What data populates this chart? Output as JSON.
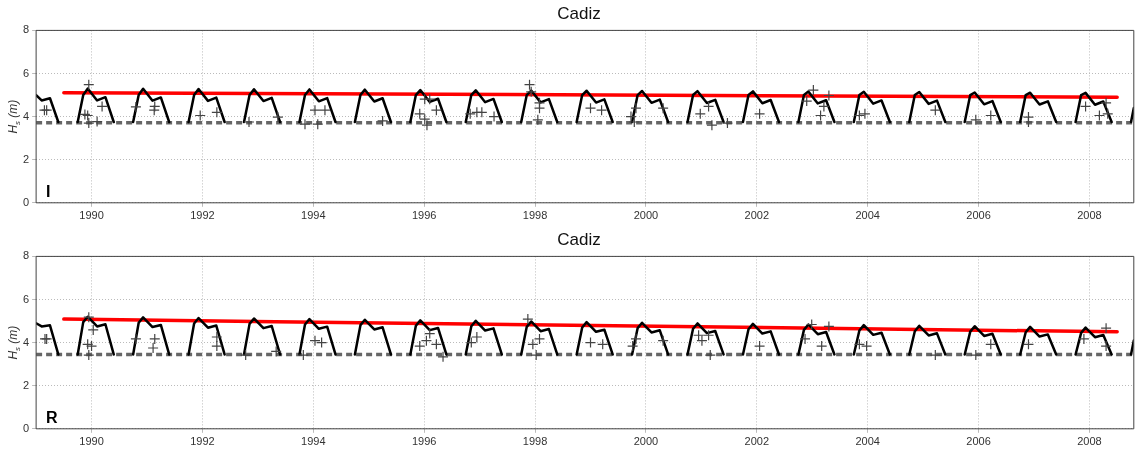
{
  "chart_data": [
    {
      "type": "line",
      "title": "Cadiz",
      "ylabel": "H$_{s}$ (m)",
      "xlim": [
        1989,
        2008.8
      ],
      "xticks": [
        1990,
        1992,
        1994,
        1996,
        1998,
        2000,
        2002,
        2004,
        2006,
        2008
      ],
      "ylim": [
        0,
        8
      ],
      "yticks": [
        0,
        2,
        4,
        6,
        8
      ],
      "grid": true,
      "annotations": [
        "I"
      ],
      "ref_lines": [
        {
          "axis": "y",
          "value": 3.71,
          "color": "#666666",
          "line_style": "dashed"
        }
      ],
      "series": [
        {
          "type": "line",
          "color": "#000000",
          "x": [
            1989,
            1989.1,
            1989.25,
            1989.4,
            1989.5,
            1989.75,
            1989.85,
            1989.93,
            1990.1,
            1990.25,
            1990.4,
            1990.5,
            1990.75,
            1990.85,
            1990.93,
            1991.1,
            1991.25,
            1991.4,
            1991.5,
            1991.75,
            1991.85,
            1991.93,
            1992.1,
            1992.25,
            1992.4,
            1992.5,
            1992.75,
            1992.85,
            1992.93,
            1993.1,
            1993.25,
            1993.4,
            1993.5,
            1993.75,
            1993.85,
            1993.93,
            1994.1,
            1994.25,
            1994.4,
            1994.5,
            1994.75,
            1994.85,
            1994.93,
            1995.1,
            1995.25,
            1995.4,
            1995.5,
            1995.75,
            1995.85,
            1995.93,
            1996.1,
            1996.25,
            1996.4,
            1996.5,
            1996.75,
            1996.85,
            1996.93,
            1997.1,
            1997.25,
            1997.4,
            1997.5,
            1997.75,
            1997.85,
            1997.93,
            1998.1,
            1998.25,
            1998.4,
            1998.5,
            1998.75,
            1998.85,
            1998.93,
            1999.1,
            1999.25,
            1999.4,
            1999.5,
            1999.75,
            1999.85,
            1999.93,
            2000.1,
            2000.25,
            2000.4,
            2000.5,
            2000.75,
            2000.85,
            2000.93,
            2001.1,
            2001.25,
            2001.4,
            2001.5,
            2001.75,
            2001.85,
            2001.93,
            2002.1,
            2002.25,
            2002.4,
            2002.5,
            2002.75,
            2002.85,
            2002.93,
            2003.1,
            2003.25,
            2003.4,
            2003.5,
            2003.75,
            2003.85,
            2003.93,
            2004.1,
            2004.25,
            2004.4,
            2004.5,
            2004.75,
            2004.85,
            2004.93,
            2005.1,
            2005.25,
            2005.4,
            2005.5,
            2005.75,
            2005.85,
            2005.93,
            2006.1,
            2006.25,
            2006.4,
            2006.5,
            2006.75,
            2006.85,
            2006.93,
            2007.1,
            2007.25,
            2007.4,
            2007.5,
            2007.75,
            2007.85,
            2007.93,
            2008.1,
            2008.25,
            2008.4,
            2008.5,
            2008.75,
            2008.8
          ],
          "values": [
            5.0,
            4.75,
            4.85,
            3.75,
            null,
            3.75,
            5.0,
            5.3,
            4.75,
            4.9,
            3.75,
            null,
            3.75,
            5.0,
            5.29,
            4.74,
            4.89,
            3.75,
            null,
            3.75,
            5.0,
            5.28,
            4.73,
            4.88,
            3.75,
            null,
            3.75,
            5.0,
            5.27,
            4.72,
            4.87,
            3.75,
            null,
            3.75,
            5.0,
            5.26,
            4.71,
            4.86,
            3.75,
            null,
            3.75,
            5.0,
            5.25,
            4.7,
            4.85,
            3.75,
            null,
            3.75,
            5.0,
            5.23,
            4.68,
            4.83,
            3.75,
            null,
            3.75,
            5.0,
            5.22,
            4.67,
            4.82,
            3.75,
            null,
            3.75,
            5.0,
            5.21,
            4.66,
            4.81,
            3.75,
            null,
            3.75,
            5.0,
            5.2,
            4.65,
            4.8,
            3.75,
            null,
            3.75,
            5.0,
            5.19,
            4.64,
            4.79,
            3.75,
            null,
            3.75,
            5.0,
            5.18,
            4.63,
            4.78,
            3.75,
            null,
            3.75,
            5.0,
            5.17,
            4.62,
            4.77,
            3.75,
            null,
            3.75,
            5.0,
            5.16,
            4.61,
            4.76,
            3.75,
            null,
            3.75,
            5.0,
            5.15,
            4.6,
            4.75,
            3.75,
            null,
            3.75,
            5.0,
            5.14,
            4.59,
            4.74,
            3.75,
            null,
            3.75,
            5.0,
            5.12,
            4.57,
            4.72,
            3.75,
            null,
            3.75,
            5.0,
            5.11,
            4.56,
            4.71,
            3.75,
            null,
            3.75,
            5.0,
            5.1,
            4.55,
            4.7,
            3.75,
            null,
            3.75,
            4.4
          ]
        },
        {
          "type": "scatter",
          "marker": "cross",
          "color": "#444444",
          "x": [
            1989.15,
            1989.19,
            1989.95,
            1989.93,
            1989.95,
            1990.19,
            1990.1,
            1989.88,
            1990.8,
            1991.13,
            1991.14,
            1991.96,
            1992.26,
            1992.84,
            1993.36,
            1993.85,
            1994.03,
            1994.21,
            1994.08,
            1995.25,
            1995.92,
            1996.01,
            1996.1,
            1996.22,
            1996.01,
            1996.05,
            1996.83,
            1996.95,
            1997.04,
            1997.26,
            1997.9,
            1997.93,
            1998.08,
            1998.08,
            1998.05,
            1999.0,
            1999.2,
            1999.73,
            1999.82,
            1999.79,
            2000.31,
            2000.98,
            2001.13,
            2001.19,
            2001.47,
            2002.05,
            2002.9,
            2003.02,
            2003.21,
            2003.15,
            2003.3,
            2003.85,
            2003.95,
            2005.22,
            2005.95,
            2006.22,
            2006.9,
            2006.9,
            2007.93,
            2008.18,
            2008.33,
            2008.3
          ],
          "values": [
            4.3,
            4.3,
            5.48,
            4.05,
            3.7,
            4.47,
            3.77,
            4.1,
            4.45,
            4.3,
            4.47,
            4.05,
            4.2,
            3.75,
            3.98,
            3.65,
            4.3,
            4.3,
            3.65,
            3.8,
            4.13,
            4.81,
            4.81,
            4.3,
            3.88,
            3.6,
            4.13,
            4.2,
            4.2,
            4.0,
            5.48,
            5.15,
            4.39,
            4.64,
            3.85,
            4.39,
            4.3,
            4.0,
            4.39,
            3.75,
            4.39,
            4.13,
            4.47,
            3.6,
            3.7,
            4.13,
            4.72,
            5.23,
            4.47,
            4.05,
            4.98,
            4.05,
            4.13,
            4.3,
            3.85,
            4.05,
            3.98,
            3.75,
            4.47,
            4.05,
            4.13,
            4.64
          ]
        },
        {
          "type": "line",
          "color": "#ff0000",
          "x": [
            1989.5,
            2008.5
          ],
          "values": [
            5.11,
            4.9
          ]
        }
      ]
    },
    {
      "type": "line",
      "title": "Cadiz",
      "ylabel": "H$_{s}$ (m)",
      "xlim": [
        1989,
        2008.8
      ],
      "xticks": [
        1990,
        1992,
        1994,
        1996,
        1998,
        2000,
        2002,
        2004,
        2006,
        2008
      ],
      "ylim": [
        0,
        8
      ],
      "yticks": [
        0,
        2,
        4,
        6,
        8
      ],
      "grid": true,
      "annotations": [
        "R"
      ],
      "ref_lines": [
        {
          "axis": "y",
          "value": 3.45,
          "color": "#666666",
          "line_style": "dashed"
        }
      ],
      "series": [
        {
          "type": "line",
          "color": "#000000",
          "x": [
            1989,
            1989.1,
            1989.25,
            1989.4,
            1989.5,
            1989.75,
            1989.85,
            1989.93,
            1990.1,
            1990.25,
            1990.4,
            1990.5,
            1990.75,
            1990.85,
            1990.93,
            1991.1,
            1991.25,
            1991.4,
            1991.5,
            1991.75,
            1991.85,
            1991.93,
            1992.1,
            1992.25,
            1992.4,
            1992.5,
            1992.75,
            1992.85,
            1992.93,
            1993.1,
            1993.25,
            1993.4,
            1993.5,
            1993.75,
            1993.85,
            1993.93,
            1994.1,
            1994.25,
            1994.4,
            1994.5,
            1994.75,
            1994.85,
            1994.93,
            1995.1,
            1995.25,
            1995.4,
            1995.5,
            1995.75,
            1995.85,
            1995.93,
            1996.1,
            1996.25,
            1996.4,
            1996.5,
            1996.75,
            1996.85,
            1996.93,
            1997.1,
            1997.25,
            1997.4,
            1997.5,
            1997.75,
            1997.85,
            1997.93,
            1998.1,
            1998.25,
            1998.4,
            1998.5,
            1998.75,
            1998.85,
            1998.93,
            1999.1,
            1999.25,
            1999.4,
            1999.5,
            1999.75,
            1999.85,
            1999.93,
            2000.1,
            2000.25,
            2000.4,
            2000.5,
            2000.75,
            2000.85,
            2000.93,
            2001.1,
            2001.25,
            2001.4,
            2001.5,
            2001.75,
            2001.85,
            2001.93,
            2002.1,
            2002.25,
            2002.4,
            2002.5,
            2002.75,
            2002.85,
            2002.93,
            2003.1,
            2003.25,
            2003.4,
            2003.5,
            2003.75,
            2003.85,
            2003.93,
            2004.1,
            2004.25,
            2004.4,
            2004.5,
            2004.75,
            2004.85,
            2004.93,
            2005.1,
            2005.25,
            2005.4,
            2005.5,
            2005.75,
            2005.85,
            2005.93,
            2006.1,
            2006.25,
            2006.4,
            2006.5,
            2006.75,
            2006.85,
            2006.93,
            2007.1,
            2007.25,
            2007.4,
            2007.5,
            2007.75,
            2007.85,
            2007.93,
            2008.1,
            2008.25,
            2008.4,
            2008.5,
            2008.75,
            2008.8
          ],
          "values": [
            4.9,
            4.75,
            4.8,
            3.45,
            null,
            3.45,
            4.95,
            5.2,
            4.75,
            4.85,
            3.45,
            null,
            3.45,
            4.92,
            5.17,
            4.72,
            4.82,
            3.45,
            null,
            3.45,
            4.89,
            5.14,
            4.69,
            4.79,
            3.45,
            null,
            3.45,
            4.87,
            5.12,
            4.67,
            4.77,
            3.45,
            null,
            3.45,
            4.84,
            5.09,
            4.64,
            4.74,
            3.45,
            null,
            3.45,
            4.81,
            5.06,
            4.61,
            4.71,
            3.45,
            null,
            3.45,
            4.78,
            5.03,
            4.58,
            4.68,
            3.45,
            null,
            3.45,
            4.76,
            5.01,
            4.56,
            4.66,
            3.45,
            null,
            3.45,
            4.73,
            4.98,
            4.53,
            4.63,
            3.45,
            null,
            3.45,
            4.7,
            4.95,
            4.5,
            4.6,
            3.45,
            null,
            3.45,
            4.67,
            4.92,
            4.47,
            4.57,
            3.45,
            null,
            3.45,
            4.64,
            4.89,
            4.44,
            4.54,
            3.45,
            null,
            3.45,
            4.62,
            4.87,
            4.42,
            4.52,
            3.45,
            null,
            3.45,
            4.59,
            4.84,
            4.39,
            4.49,
            3.45,
            null,
            3.45,
            4.56,
            4.81,
            4.36,
            4.46,
            3.45,
            null,
            3.45,
            4.53,
            4.78,
            4.33,
            4.43,
            3.45,
            null,
            3.45,
            4.51,
            4.76,
            4.31,
            4.41,
            3.45,
            null,
            3.45,
            4.48,
            4.73,
            4.28,
            4.38,
            3.45,
            null,
            3.45,
            4.45,
            4.7,
            4.25,
            4.35,
            3.45,
            null,
            3.45,
            4.1
          ]
        },
        {
          "type": "scatter",
          "marker": "cross",
          "color": "#444444",
          "x": [
            1989.16,
            1989.19,
            1989.95,
            1989.93,
            1990.0,
            1989.95,
            1990.03,
            1990.8,
            1991.14,
            1991.11,
            1992.26,
            1992.26,
            1992.78,
            1993.33,
            1993.82,
            1994.03,
            1994.15,
            1995.92,
            1996.04,
            1996.1,
            1996.22,
            1996.34,
            1996.85,
            1996.95,
            1997.87,
            1997.96,
            1998.08,
            1998.02,
            1999.0,
            1999.22,
            1999.76,
            1999.82,
            2000.31,
            2000.95,
            2001.01,
            2001.13,
            2001.16,
            2002.05,
            2002.87,
            2002.99,
            2003.17,
            2003.3,
            2003.85,
            2003.98,
            2005.22,
            2005.95,
            2006.22,
            2006.9,
            2007.9,
            2008.3,
            2008.3
          ],
          "values": [
            4.17,
            4.17,
            5.18,
            3.92,
            3.84,
            3.42,
            4.59,
            4.17,
            4.17,
            3.75,
            4.26,
            3.84,
            3.42,
            3.59,
            3.42,
            4.09,
            4.0,
            3.84,
            4.09,
            4.42,
            3.92,
            3.34,
            4.0,
            4.26,
            5.09,
            3.92,
            4.17,
            3.42,
            4.0,
            3.92,
            3.84,
            4.17,
            4.09,
            4.34,
            4.09,
            4.34,
            3.42,
            3.84,
            4.17,
            4.84,
            3.84,
            4.75,
            3.92,
            3.84,
            3.42,
            3.42,
            3.92,
            3.92,
            4.17,
            4.67,
            3.84
          ]
        },
        {
          "type": "line",
          "color": "#ff0000",
          "x": [
            1989.5,
            2008.5
          ],
          "values": [
            5.09,
            4.5
          ]
        }
      ]
    }
  ]
}
